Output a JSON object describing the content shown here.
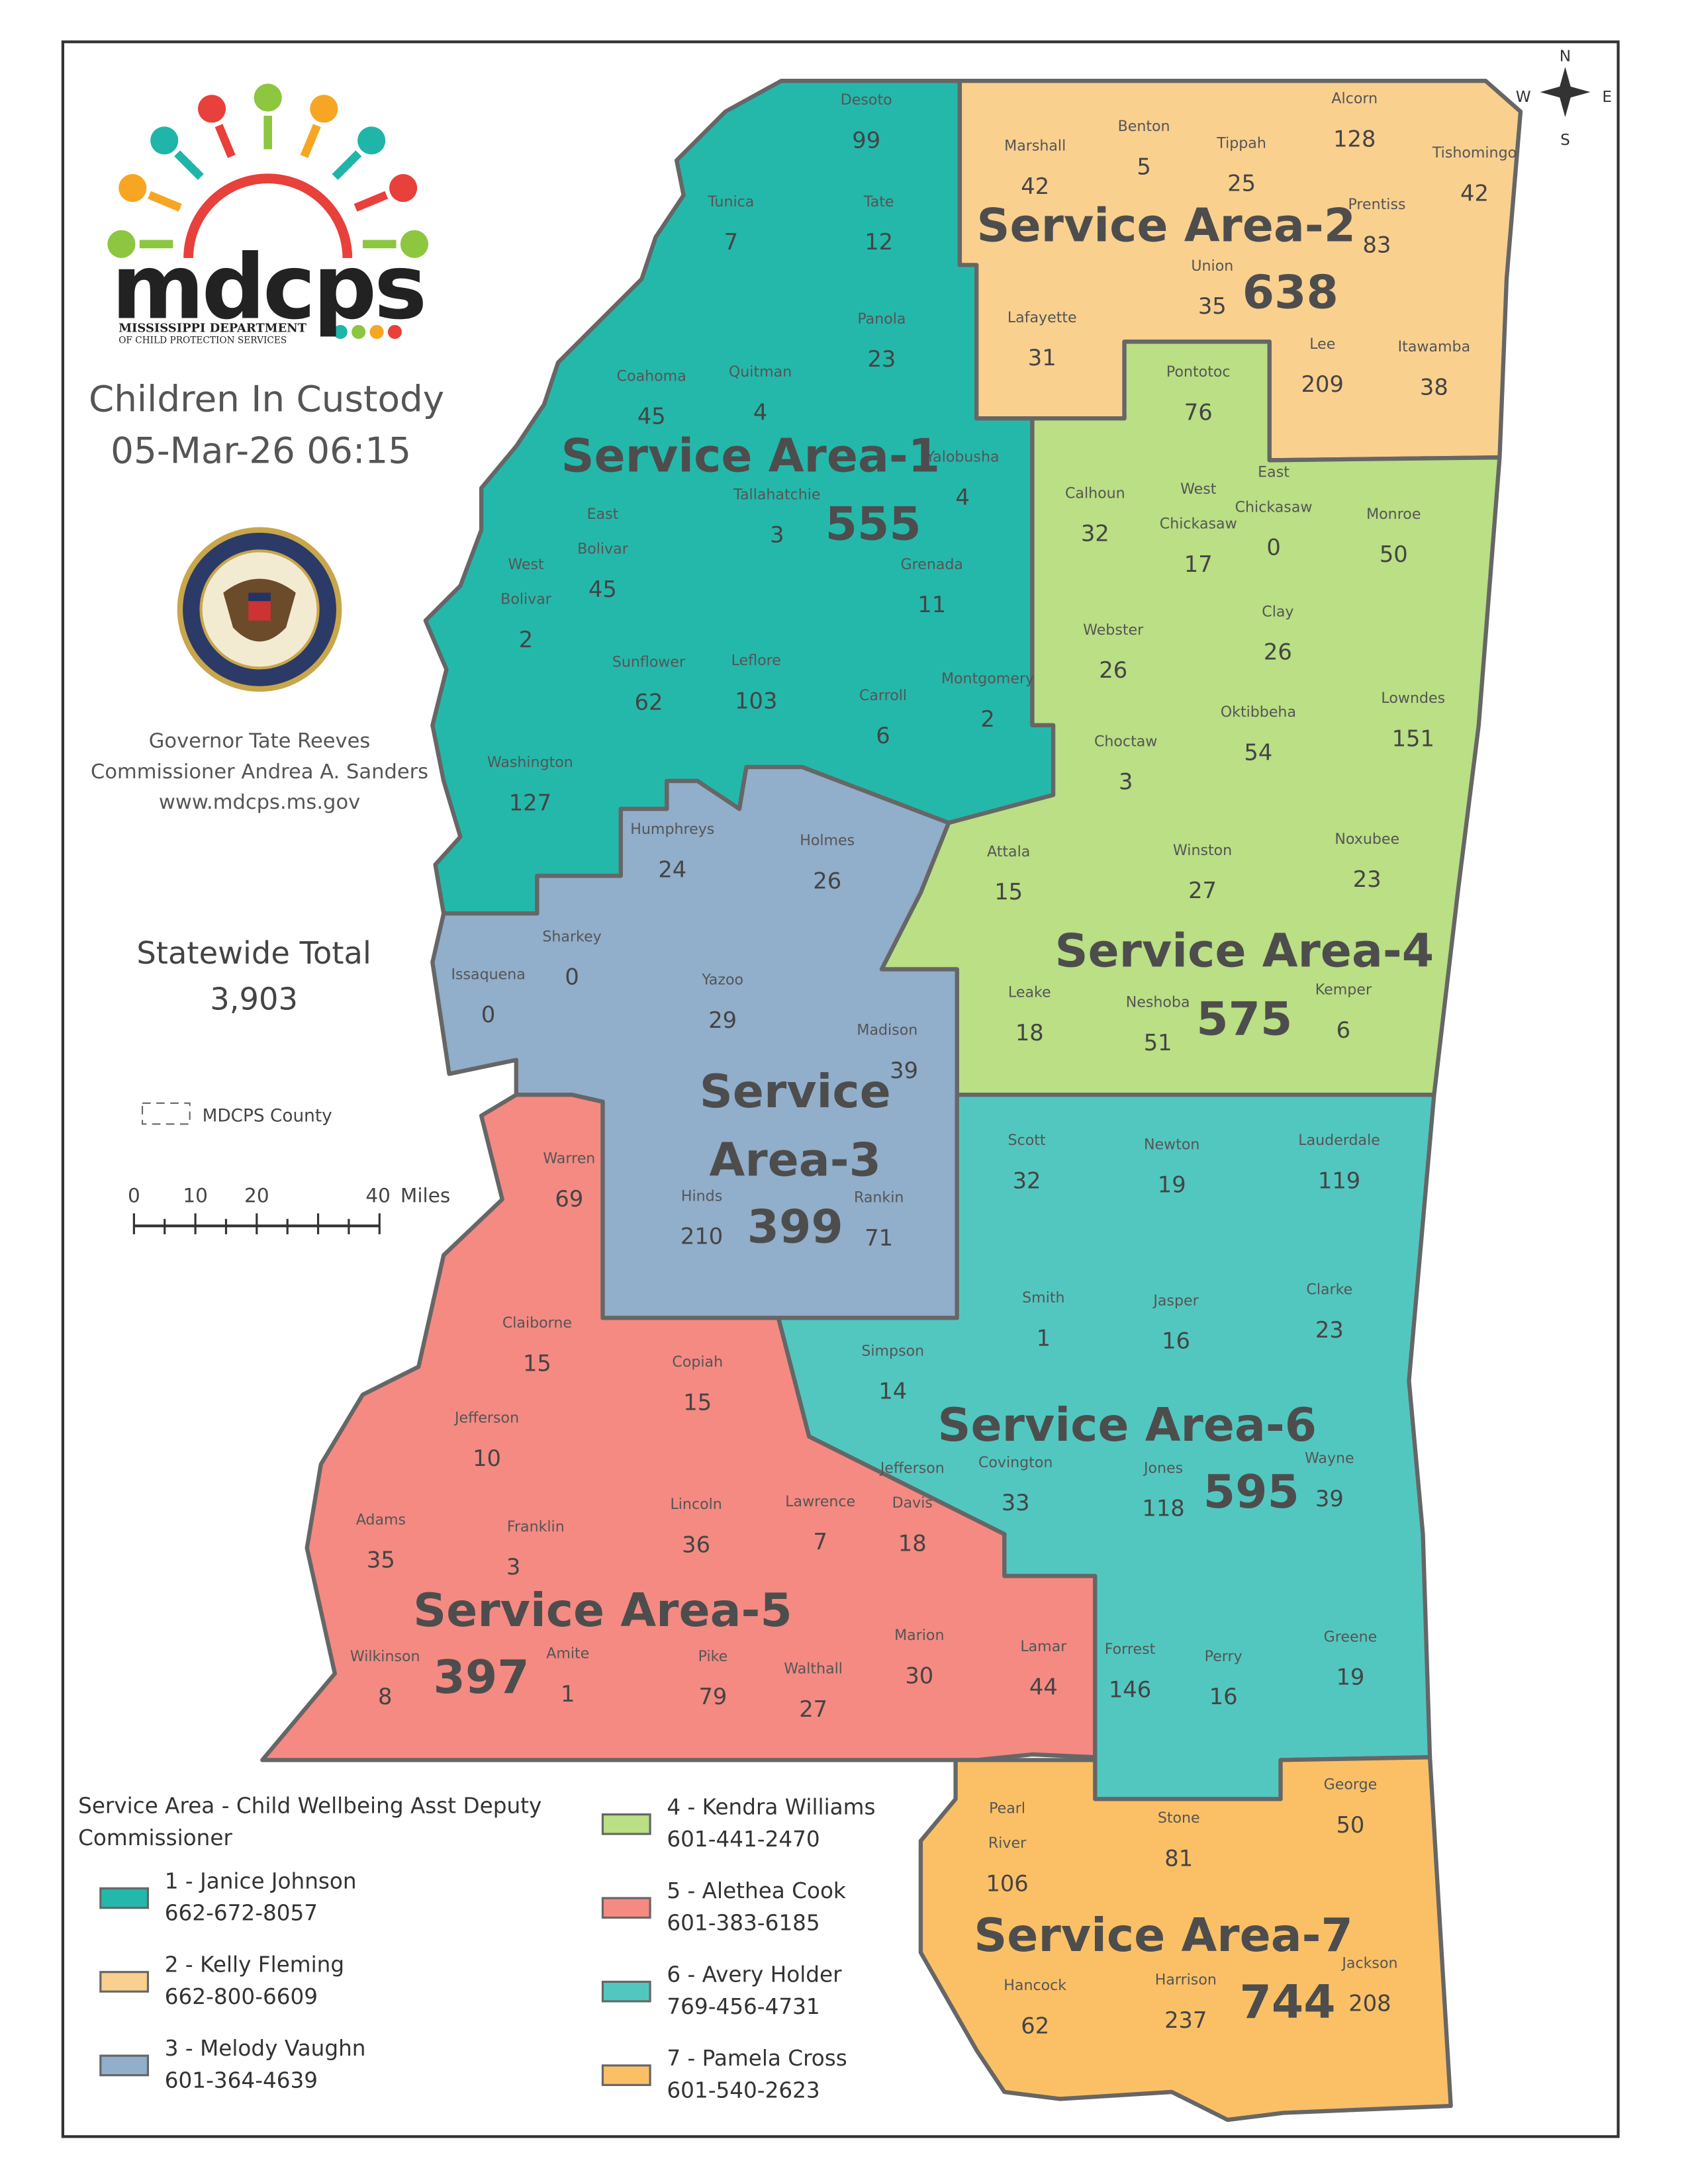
{
  "title": "Children In Custody",
  "timestamp": "05-Mar-26 06:15",
  "logo": {
    "text": "mdcps",
    "subtitle1": "MISSISSIPPI DEPARTMENT",
    "subtitle2": "OF CHILD PROTECTION SERVICES"
  },
  "seal": {
    "text": "THE GREAT SEAL OF THE STATE OF MISSISSIPPI · IN GOD WE TRUST"
  },
  "officials": [
    "Governor Tate Reeves",
    "Commissioner Andrea A. Sanders",
    "www.mdcps.ms.gov"
  ],
  "statewide": {
    "label": "Statewide Total",
    "value": "3,903"
  },
  "county_legend": "MDCPS County",
  "scale": {
    "ticks": [
      "0",
      "10",
      "20",
      "40"
    ],
    "unit": "Miles"
  },
  "compass": {
    "n": "N",
    "s": "S",
    "e": "E",
    "w": "W"
  },
  "legend": {
    "title_line1": "Service Area - Child Wellbeing Asst Deputy",
    "title_line2": "Commissioner",
    "items": [
      {
        "label": "1 - Janice Johnson",
        "phone": "662-672-8057",
        "color": "#24b8ab"
      },
      {
        "label": "2 - Kelly Fleming",
        "phone": "662-800-6609",
        "color": "#fad08f"
      },
      {
        "label": "3 - Melody Vaughn",
        "phone": "601-364-4639",
        "color": "#91aecb"
      },
      {
        "label": "4 - Kendra Williams",
        "phone": "601-441-2470",
        "color": "#badf84"
      },
      {
        "label": "5 - Alethea Cook",
        "phone": "601-383-6185",
        "color": "#f48a82"
      },
      {
        "label": "6 - Avery Holder",
        "phone": "769-456-4731",
        "color": "#52c7c0"
      },
      {
        "label": "7 - Pamela Cross",
        "phone": "601-540-2623",
        "color": "#fbc066"
      }
    ]
  },
  "service_areas": [
    {
      "label": "Service Area-1",
      "total": "555",
      "color": "#24b8ab"
    },
    {
      "label": "Service Area-2",
      "total": "638",
      "color": "#fad08f"
    },
    {
      "label": "Service Area-3",
      "total": "399",
      "color": "#91aecb"
    },
    {
      "label": "Service Area-4",
      "total": "575",
      "color": "#badf84"
    },
    {
      "label": "Service Area-5",
      "total": "397",
      "color": "#f48a82"
    },
    {
      "label": "Service Area-6",
      "total": "595",
      "color": "#52c7c0"
    },
    {
      "label": "Service Area-7",
      "total": "744",
      "color": "#fbc066"
    }
  ],
  "counties": [
    {
      "name": "Desoto",
      "count": 99,
      "area": 1
    },
    {
      "name": "Tunica",
      "count": 7,
      "area": 1
    },
    {
      "name": "Tate",
      "count": 12,
      "area": 1
    },
    {
      "name": "Panola",
      "count": 23,
      "area": 1
    },
    {
      "name": "Coahoma",
      "count": 45,
      "area": 1
    },
    {
      "name": "Quitman",
      "count": 4,
      "area": 1
    },
    {
      "name": "Tallahatchie",
      "count": 3,
      "area": 1
    },
    {
      "name": "Yalobusha",
      "count": 4,
      "area": 1
    },
    {
      "name": "East Bolivar",
      "count": 45,
      "area": 1
    },
    {
      "name": "West Bolivar",
      "count": 2,
      "area": 1
    },
    {
      "name": "Grenada",
      "count": 11,
      "area": 1
    },
    {
      "name": "Sunflower",
      "count": 62,
      "area": 1
    },
    {
      "name": "Leflore",
      "count": 103,
      "area": 1
    },
    {
      "name": "Carroll",
      "count": 6,
      "area": 1
    },
    {
      "name": "Montgomery",
      "count": 2,
      "area": 1
    },
    {
      "name": "Washington",
      "count": 127,
      "area": 1
    },
    {
      "name": "Marshall",
      "count": 42,
      "area": 2
    },
    {
      "name": "Benton",
      "count": 5,
      "area": 2
    },
    {
      "name": "Tippah",
      "count": 25,
      "area": 2
    },
    {
      "name": "Alcorn",
      "count": 128,
      "area": 2
    },
    {
      "name": "Tishomingo",
      "count": 42,
      "area": 2
    },
    {
      "name": "Prentiss",
      "count": 83,
      "area": 2
    },
    {
      "name": "Union",
      "count": 35,
      "area": 2
    },
    {
      "name": "Lafayette",
      "count": 31,
      "area": 2
    },
    {
      "name": "Lee",
      "count": 209,
      "area": 2
    },
    {
      "name": "Itawamba",
      "count": 38,
      "area": 2
    },
    {
      "name": "Pontotoc",
      "count": 76,
      "area": 4
    },
    {
      "name": "Calhoun",
      "count": 32,
      "area": 4
    },
    {
      "name": "West Chickasaw",
      "count": 17,
      "area": 4
    },
    {
      "name": "East Chickasaw",
      "count": 0,
      "area": 4
    },
    {
      "name": "Monroe",
      "count": 50,
      "area": 4
    },
    {
      "name": "Clay",
      "count": 26,
      "area": 4
    },
    {
      "name": "Webster",
      "count": 26,
      "area": 4
    },
    {
      "name": "Lowndes",
      "count": 151,
      "area": 4
    },
    {
      "name": "Oktibbeha",
      "count": 54,
      "area": 4
    },
    {
      "name": "Choctaw",
      "count": 3,
      "area": 4
    },
    {
      "name": "Attala",
      "count": 15,
      "area": 4
    },
    {
      "name": "Winston",
      "count": 27,
      "area": 4
    },
    {
      "name": "Noxubee",
      "count": 23,
      "area": 4
    },
    {
      "name": "Leake",
      "count": 18,
      "area": 4
    },
    {
      "name": "Neshoba",
      "count": 51,
      "area": 4
    },
    {
      "name": "Kemper",
      "count": 6,
      "area": 4
    },
    {
      "name": "Humphreys",
      "count": 24,
      "area": 3
    },
    {
      "name": "Holmes",
      "count": 26,
      "area": 3
    },
    {
      "name": "Sharkey",
      "count": 0,
      "area": 3
    },
    {
      "name": "Issaquena",
      "count": 0,
      "area": 3
    },
    {
      "name": "Yazoo",
      "count": 29,
      "area": 3
    },
    {
      "name": "Madison",
      "count": 39,
      "area": 3
    },
    {
      "name": "Hinds",
      "count": 210,
      "area": 3
    },
    {
      "name": "Rankin",
      "count": 71,
      "area": 3
    },
    {
      "name": "Scott",
      "count": 32,
      "area": 6
    },
    {
      "name": "Newton",
      "count": 19,
      "area": 6
    },
    {
      "name": "Lauderdale",
      "count": 119,
      "area": 6
    },
    {
      "name": "Smith",
      "count": 1,
      "area": 6
    },
    {
      "name": "Jasper",
      "count": 16,
      "area": 6
    },
    {
      "name": "Clarke",
      "count": 23,
      "area": 6
    },
    {
      "name": "Simpson",
      "count": 14,
      "area": 6
    },
    {
      "name": "Covington",
      "count": 33,
      "area": 6
    },
    {
      "name": "Jones",
      "count": 118,
      "area": 6
    },
    {
      "name": "Wayne",
      "count": 39,
      "area": 6
    },
    {
      "name": "Forrest",
      "count": 146,
      "area": 6
    },
    {
      "name": "Perry",
      "count": 16,
      "area": 6
    },
    {
      "name": "Greene",
      "count": 19,
      "area": 6
    },
    {
      "name": "Warren",
      "count": 69,
      "area": 5
    },
    {
      "name": "Claiborne",
      "count": 15,
      "area": 5
    },
    {
      "name": "Copiah",
      "count": 15,
      "area": 5
    },
    {
      "name": "Jefferson",
      "count": 10,
      "area": 5
    },
    {
      "name": "Lincoln",
      "count": 36,
      "area": 5
    },
    {
      "name": "Lawrence",
      "count": 7,
      "area": 5
    },
    {
      "name": "Jefferson Davis",
      "count": 18,
      "area": 5
    },
    {
      "name": "Adams",
      "count": 35,
      "area": 5
    },
    {
      "name": "Franklin",
      "count": 3,
      "area": 5
    },
    {
      "name": "Wilkinson",
      "count": 8,
      "area": 5
    },
    {
      "name": "Amite",
      "count": 1,
      "area": 5
    },
    {
      "name": "Pike",
      "count": 79,
      "area": 5
    },
    {
      "name": "Walthall",
      "count": 27,
      "area": 5
    },
    {
      "name": "Marion",
      "count": 30,
      "area": 5
    },
    {
      "name": "Lamar",
      "count": 44,
      "area": 5
    },
    {
      "name": "Pearl River",
      "count": 106,
      "area": 7
    },
    {
      "name": "Stone",
      "count": 81,
      "area": 7
    },
    {
      "name": "George",
      "count": 50,
      "area": 7
    },
    {
      "name": "Hancock",
      "count": 62,
      "area": 7
    },
    {
      "name": "Harrison",
      "count": 237,
      "area": 7
    },
    {
      "name": "Jackson",
      "count": 208,
      "area": 7
    }
  ]
}
